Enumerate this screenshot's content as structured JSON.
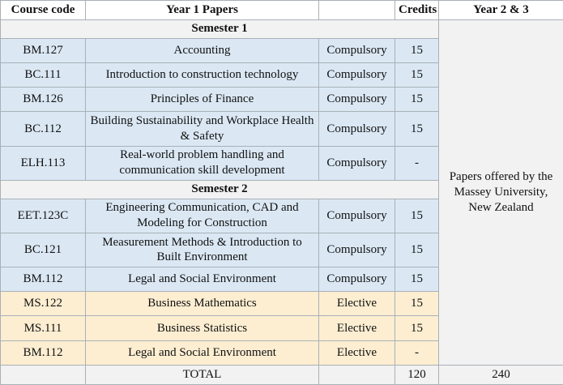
{
  "table": {
    "columns": [
      "Course code",
      "Year 1 Papers",
      "",
      "Credits",
      "Year 2 & 3"
    ],
    "rows": [
      {
        "type": "section",
        "label": "Semester 1"
      },
      {
        "type": "course",
        "theme": "blue",
        "code": "BM.127",
        "title": "Accounting",
        "status": "Compulsory",
        "credits": "15"
      },
      {
        "type": "course",
        "theme": "blue",
        "code": "BC.111",
        "title": "Introduction to construction technology",
        "status": "Compulsory",
        "credits": "15"
      },
      {
        "type": "course",
        "theme": "blue",
        "code": "BM.126",
        "title": "Principles of Finance",
        "status": "Compulsory",
        "credits": "15"
      },
      {
        "type": "course",
        "theme": "blue",
        "code": "BC.112",
        "title": "Building Sustainability and Workplace Health & Safety",
        "status": "Compulsory",
        "credits": "15"
      },
      {
        "type": "course",
        "theme": "blue",
        "code": "ELH.113",
        "title": "Real-world problem handling and communication skill development",
        "status": "Compulsory",
        "credits": "-"
      },
      {
        "type": "section",
        "label": "Semester 2"
      },
      {
        "type": "course",
        "theme": "blue",
        "code": "EET.123C",
        "title": "Engineering Communication, CAD and Modeling for Construction",
        "status": "Compulsory",
        "credits": "15"
      },
      {
        "type": "course",
        "theme": "blue",
        "code": "BC.121",
        "title": "Measurement Methods & Introduction to Built Environment",
        "status": "Compulsory",
        "credits": "15"
      },
      {
        "type": "course",
        "theme": "blue",
        "code": "BM.112",
        "title": "Legal and Social Environment",
        "status": "Compulsory",
        "credits": "15"
      },
      {
        "type": "course",
        "theme": "yellow",
        "code": "MS.122",
        "title": "Business Mathematics",
        "status": "Elective",
        "credits": "15"
      },
      {
        "type": "course",
        "theme": "yellow",
        "code": "MS.111",
        "title": "Business Statistics",
        "status": "Elective",
        "credits": "15"
      },
      {
        "type": "course",
        "theme": "yellow",
        "code": "BM.112",
        "title": "Legal and Social Environment",
        "status": "Elective",
        "credits": "-"
      }
    ],
    "year23_note": "Papers offered by the Massey University, New Zealand",
    "total": {
      "label": "TOTAL",
      "credits": "120",
      "year23": "240"
    }
  },
  "colors": {
    "compulsory_row": "#dbe8f4",
    "elective_row": "#fdeed2",
    "band_gray": "#f2f2f2",
    "border": "#a9b0b6",
    "header_bg": "#ffffff",
    "text": "#111111"
  }
}
